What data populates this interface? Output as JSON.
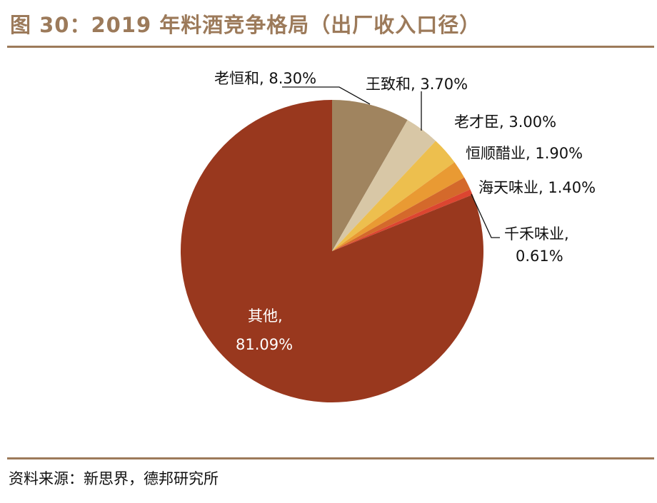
{
  "title": "图 30：2019 年料酒竞争格局（出厂收入口径）",
  "source": "资料来源：新思界，德邦研究所",
  "chart_data": {
    "type": "pie",
    "title": "图 30：2019 年料酒竞争格局（出厂收入口径）",
    "slices": [
      {
        "label": "老恒和",
        "value": 8.3,
        "display": "老恒和, 8.30%",
        "color": "#A0845F"
      },
      {
        "label": "王致和",
        "value": 3.7,
        "display": "王致和, 3.70%",
        "color": "#D8C7A6"
      },
      {
        "label": "老才臣",
        "value": 3.0,
        "display": "老才臣, 3.00%",
        "color": "#EDBF4E"
      },
      {
        "label": "恒顺醋业",
        "value": 1.9,
        "display": "恒顺醋业, 1.90%",
        "color": "#E99A33"
      },
      {
        "label": "海天味业",
        "value": 1.4,
        "display": "海天味业, 1.40%",
        "color": "#D4692B"
      },
      {
        "label": "千禾味业",
        "value": 0.61,
        "display": "千禾味业,",
        "display2": "0.61%",
        "color": "#DC4530"
      },
      {
        "label": "其他",
        "value": 81.09,
        "display": "其他,",
        "display2": "81.09%",
        "color": "#99381E"
      }
    ],
    "start_angle": "12 o'clock",
    "direction": "clockwise"
  }
}
